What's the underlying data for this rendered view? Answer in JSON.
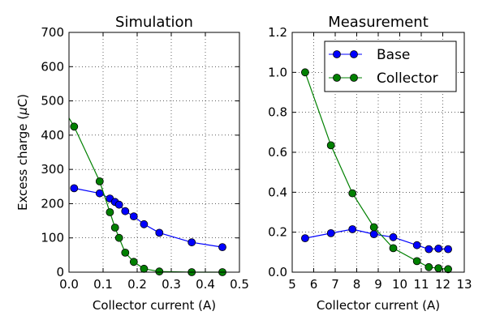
{
  "figure": {
    "ylabel_prefix": "Excess charge (",
    "ylabel_mu": "μ",
    "ylabel_suffix": "C)"
  },
  "chart_data": [
    {
      "type": "line",
      "title": "Simulation",
      "xlabel": "Collector current (A)",
      "ylabel": "Excess charge (μC)",
      "xlim": [
        0.0,
        0.5
      ],
      "ylim": [
        0,
        700
      ],
      "xticks": [
        0.0,
        0.1,
        0.2,
        0.3,
        0.4,
        0.5
      ],
      "xtick_labels": [
        "0.0",
        "0.1",
        "0.2",
        "0.3",
        "0.4",
        "0.5"
      ],
      "yticks": [
        0,
        100,
        200,
        300,
        400,
        500,
        600,
        700
      ],
      "ytick_labels": [
        "0",
        "100",
        "200",
        "300",
        "400",
        "500",
        "600",
        "700"
      ],
      "grid": true,
      "legend": null,
      "series": [
        {
          "name": "Base",
          "color": "#0000ff",
          "x": [
            0.015,
            0.09,
            0.12,
            0.135,
            0.147,
            0.165,
            0.19,
            0.22,
            0.265,
            0.36,
            0.45
          ],
          "y": [
            245,
            230,
            215,
            205,
            197,
            178,
            163,
            140,
            115,
            87,
            73
          ]
        },
        {
          "name": "Collector",
          "color": "#008000",
          "x": [
            0.015,
            0.09,
            0.12,
            0.135,
            0.147,
            0.165,
            0.19,
            0.22,
            0.265,
            0.36,
            0.45
          ],
          "y": [
            425,
            265,
            175,
            130,
            100,
            57,
            30,
            10,
            2,
            0,
            0
          ],
          "line_start_y": 450
        }
      ]
    },
    {
      "type": "line",
      "title": "Measurement",
      "xlabel": "Collector current (A)",
      "ylabel": "",
      "xlim": [
        5,
        13
      ],
      "ylim": [
        0.0,
        1.2
      ],
      "xticks": [
        5,
        6,
        7,
        8,
        9,
        10,
        11,
        12,
        13
      ],
      "xtick_labels": [
        "5",
        "6",
        "7",
        "8",
        "9",
        "10",
        "11",
        "12",
        "13"
      ],
      "yticks": [
        0.0,
        0.2,
        0.4,
        0.6,
        0.8,
        1.0,
        1.2
      ],
      "ytick_labels": [
        "0.0",
        "0.2",
        "0.4",
        "0.6",
        "0.8",
        "1.0",
        "1.2"
      ],
      "grid": true,
      "legend": "top-right",
      "legend_entries": [
        "Base",
        "Collector"
      ],
      "series": [
        {
          "name": "Base",
          "color": "#0000ff",
          "x": [
            5.6,
            6.8,
            7.8,
            8.8,
            9.7,
            10.8,
            11.35,
            11.8,
            12.25
          ],
          "y": [
            0.17,
            0.195,
            0.215,
            0.19,
            0.175,
            0.135,
            0.115,
            0.118,
            0.115
          ]
        },
        {
          "name": "Collector",
          "color": "#008000",
          "x": [
            5.6,
            6.8,
            7.8,
            8.8,
            9.7,
            10.8,
            11.35,
            11.8,
            12.25
          ],
          "y": [
            1.0,
            0.635,
            0.395,
            0.225,
            0.12,
            0.055,
            0.025,
            0.02,
            0.015
          ]
        }
      ]
    }
  ]
}
